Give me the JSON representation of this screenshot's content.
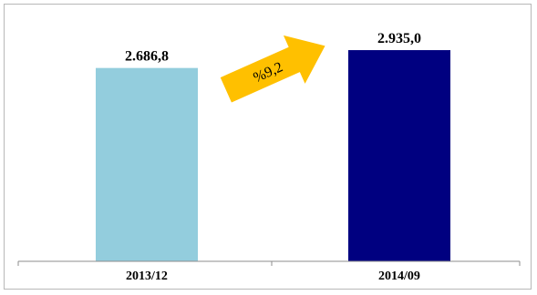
{
  "chart_data": {
    "type": "bar",
    "categories": [
      "2013/12",
      "2014/09"
    ],
    "values": [
      2686.8,
      2935.0
    ],
    "value_labels": [
      "2.686,8",
      "2.935,0"
    ],
    "bar_colors": [
      "#93cddd",
      "#000080"
    ],
    "ylim": [
      0,
      3100
    ],
    "grid": false,
    "legend": "none",
    "annotations": [
      {
        "type": "arrow",
        "text": "%9,2",
        "color": "#ffc000"
      }
    ]
  }
}
